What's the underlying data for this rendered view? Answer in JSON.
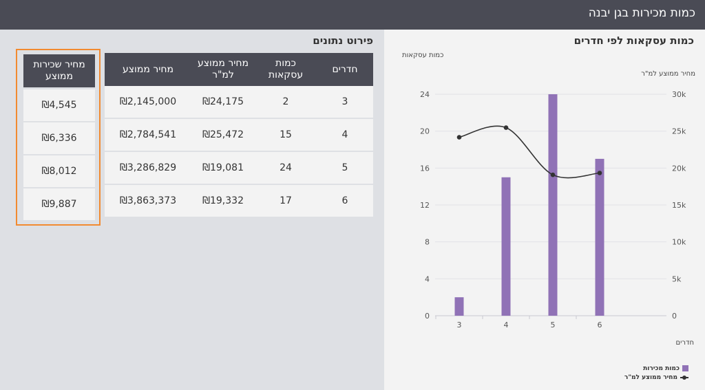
{
  "page": {
    "title": "כמות מכירות בגן יבנה"
  },
  "chart_panel": {
    "title": "כמות עסקאות לפי חדרים",
    "left_axis_label": "כמות עסקאות",
    "right_axis_label": "מחיר ממוצע למ\"ר",
    "x_axis_label": "חדרים",
    "legend": {
      "bars": "כמות מכירות",
      "line": "מחיר ממוצע למ\"ר"
    }
  },
  "chart_data": {
    "type": "bar",
    "categories": [
      "3",
      "4",
      "5",
      "6"
    ],
    "series": [
      {
        "name": "כמות מכירות",
        "type": "bar",
        "axis": "left",
        "values": [
          2,
          15,
          24,
          17
        ]
      },
      {
        "name": "מחיר ממוצע למ\"ר",
        "type": "line",
        "axis": "right",
        "values": [
          24175,
          25472,
          19081,
          19332
        ]
      }
    ],
    "left_ticks": [
      "0",
      "4",
      "8",
      "12",
      "16",
      "20",
      "24"
    ],
    "right_ticks": [
      "0",
      "5k",
      "10k",
      "15k",
      "20k",
      "25k",
      "30k"
    ],
    "ylim_left": [
      0,
      24
    ],
    "ylim_right": [
      0,
      30000
    ],
    "xlabel": "חדרים",
    "ylabel": "כמות עסקאות",
    "ylabel_right": "מחיר ממוצע למ\"ר",
    "grid": true,
    "legend_position": "bottom-right",
    "colors": {
      "bar": "#9072b6",
      "line": "#333333"
    }
  },
  "table_section": {
    "title": "פירוט נתונים",
    "headers": {
      "rooms": "חדרים",
      "deals": "כמות עסקאות",
      "avg_sqm": "מחיר ממוצע למ\"ר",
      "avg_price": "מחיר ממוצע",
      "avg_rent": "מחיר שכירות ממוצע"
    },
    "rows": [
      {
        "rooms": "3",
        "deals": "2",
        "avg_sqm": "₪24,175",
        "avg_price": "₪2,145,000",
        "avg_rent": "₪4,545"
      },
      {
        "rooms": "4",
        "deals": "15",
        "avg_sqm": "₪25,472",
        "avg_price": "₪2,784,541",
        "avg_rent": "₪6,336"
      },
      {
        "rooms": "5",
        "deals": "24",
        "avg_sqm": "₪19,081",
        "avg_price": "₪3,286,829",
        "avg_rent": "₪8,012"
      },
      {
        "rooms": "6",
        "deals": "17",
        "avg_sqm": "₪19,332",
        "avg_price": "₪3,863,373",
        "avg_rent": "₪9,887"
      }
    ]
  },
  "colors": {
    "header_bg": "#4a4b55",
    "page_bg": "#dee0e4",
    "panel_bg": "#f3f3f3",
    "highlight": "#f28a30",
    "bar": "#9072b6"
  }
}
